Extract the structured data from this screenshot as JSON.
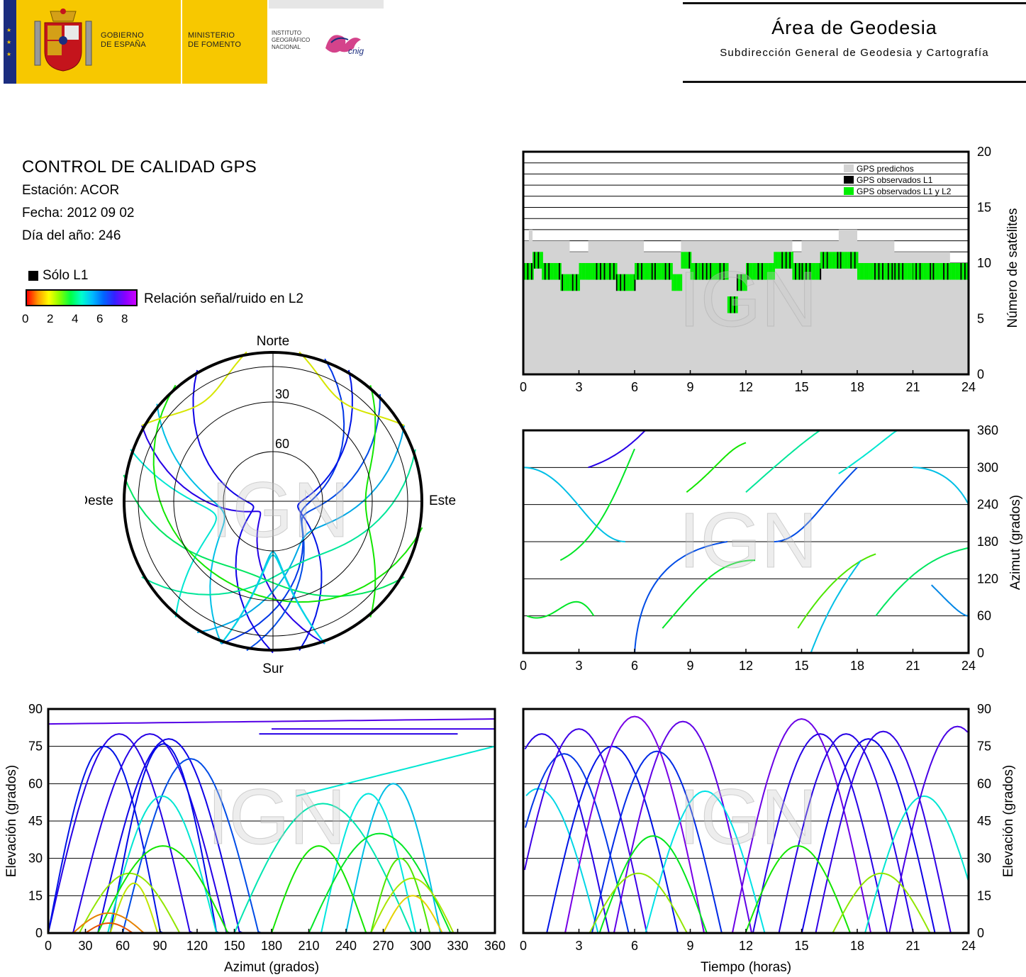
{
  "header": {
    "gobierno": [
      "GOBIERNO",
      "DE ESPAÑA"
    ],
    "ministerio": [
      "MINISTERIO",
      "DE FOMENTO"
    ],
    "instituto": [
      "INSTITUTO",
      "GEOGRÁFICO",
      "NACIONAL"
    ],
    "cnig": "cnig",
    "area_title": "Área de Geodesia",
    "area_subtitle": "Subdirección General de Geodesia y Cartografía",
    "colors": {
      "gold": "#f7c800",
      "flag_blue": "#1b2d7f",
      "flag_red": "#c4141c",
      "cnig": "#cc2277"
    }
  },
  "info": {
    "title": "CONTROL DE CALIDAD GPS",
    "station": "Estación: ACOR",
    "date": "Fecha: 2012 09 02",
    "doy": "Día del año: 246"
  },
  "legend": {
    "solo_l1": "Sólo L1",
    "snr_label": "Relación señal/ruido en L2",
    "snr_ticks": [
      "0",
      "2",
      "4",
      "6",
      "8"
    ]
  },
  "watermark": "IGN",
  "chart_data": [
    {
      "id": "skyplot",
      "type": "scatter",
      "projection": "polar",
      "directions": {
        "north": "Norte",
        "south": "Sur",
        "east": "Este",
        "west": "Oeste"
      },
      "elevation_rings": [
        "30",
        "60"
      ],
      "note": "satellite tracks colored by L2 SNR"
    },
    {
      "id": "satellites",
      "type": "area",
      "xlim": [
        0,
        24
      ],
      "ylim": [
        0,
        20
      ],
      "x_ticks": [
        "0",
        "3",
        "6",
        "9",
        "12",
        "15",
        "18",
        "21",
        "24"
      ],
      "y_ticks": [
        "0",
        "5",
        "10",
        "15",
        "20"
      ],
      "ylabel": "Número de satélites",
      "legend": [
        {
          "label": "GPS predichos",
          "color": "#d3d3d3"
        },
        {
          "label": "GPS observados L1",
          "color": "#000000"
        },
        {
          "label": "GPS observados L1 y L2",
          "color": "#00ee00"
        }
      ],
      "predicted_steps": [
        [
          0,
          12
        ],
        [
          0.3,
          13
        ],
        [
          0.5,
          12
        ],
        [
          2.5,
          11
        ],
        [
          3.5,
          12
        ],
        [
          6.5,
          11
        ],
        [
          8.5,
          12
        ],
        [
          11.5,
          12
        ],
        [
          13.5,
          12
        ],
        [
          14.5,
          11
        ],
        [
          15,
          12
        ],
        [
          17,
          13
        ],
        [
          18,
          12
        ],
        [
          20,
          11
        ],
        [
          21.5,
          11
        ],
        [
          23,
          10
        ],
        [
          24,
          10
        ]
      ],
      "observed_steps": [
        [
          0,
          10
        ],
        [
          0.5,
          11
        ],
        [
          1,
          10
        ],
        [
          2,
          9
        ],
        [
          3,
          10
        ],
        [
          3.5,
          10
        ],
        [
          4.5,
          10
        ],
        [
          5,
          9
        ],
        [
          6,
          10
        ],
        [
          7,
          10
        ],
        [
          8,
          9
        ],
        [
          8.5,
          11
        ],
        [
          9,
          10
        ],
        [
          9.5,
          10
        ],
        [
          10.5,
          10
        ],
        [
          11,
          7
        ],
        [
          11.5,
          9
        ],
        [
          12,
          10
        ],
        [
          13,
          10
        ],
        [
          13.5,
          11
        ],
        [
          14.5,
          10
        ],
        [
          15,
          10
        ],
        [
          16,
          11
        ],
        [
          17,
          11
        ],
        [
          18,
          10
        ],
        [
          18.5,
          10
        ],
        [
          19.5,
          10
        ],
        [
          20,
          10
        ],
        [
          21,
          10
        ],
        [
          22,
          10
        ],
        [
          23,
          10
        ],
        [
          24,
          10
        ]
      ]
    },
    {
      "id": "azimuth_time",
      "type": "scatter",
      "xlim": [
        0,
        24
      ],
      "ylim": [
        0,
        360
      ],
      "x_ticks": [
        "0",
        "3",
        "6",
        "9",
        "12",
        "15",
        "18",
        "21",
        "24"
      ],
      "y_ticks": [
        "0",
        "60",
        "120",
        "180",
        "240",
        "300",
        "360"
      ],
      "ylabel": "Azimut (grados)"
    },
    {
      "id": "elevation_azimuth",
      "type": "scatter",
      "xlim": [
        0,
        360
      ],
      "ylim": [
        0,
        90
      ],
      "x_ticks": [
        "0",
        "30",
        "60",
        "90",
        "120",
        "150",
        "180",
        "210",
        "240",
        "270",
        "300",
        "330",
        "360"
      ],
      "y_ticks": [
        "0",
        "15",
        "30",
        "45",
        "60",
        "75",
        "90"
      ],
      "xlabel": "Azimut (grados)",
      "ylabel": "Elevación (grados)"
    },
    {
      "id": "elevation_time",
      "type": "line",
      "xlim": [
        0,
        24
      ],
      "ylim": [
        0,
        90
      ],
      "x_ticks": [
        "0",
        "3",
        "6",
        "9",
        "12",
        "15",
        "18",
        "21",
        "24"
      ],
      "y_ticks": [
        "0",
        "15",
        "30",
        "45",
        "60",
        "75",
        "90"
      ],
      "xlabel": "Tiempo (horas)",
      "ylabel": "Elevación (grados)",
      "peaks": [
        {
          "t": 1.0,
          "el": 80
        },
        {
          "t": 0.8,
          "el": 58
        },
        {
          "t": 2.2,
          "el": 72
        },
        {
          "t": 4.8,
          "el": 75
        },
        {
          "t": 3.0,
          "el": 82
        },
        {
          "t": 6.0,
          "el": 87
        },
        {
          "t": 7.2,
          "el": 73
        },
        {
          "t": 8.6,
          "el": 85
        },
        {
          "t": 9.8,
          "el": 57
        },
        {
          "t": 15.0,
          "el": 86
        },
        {
          "t": 16.0,
          "el": 80
        },
        {
          "t": 17.4,
          "el": 80
        },
        {
          "t": 18.6,
          "el": 78
        },
        {
          "t": 19.4,
          "el": 81
        },
        {
          "t": 21.6,
          "el": 55
        },
        {
          "t": 23.4,
          "el": 83
        },
        {
          "t": 7.0,
          "el": 39
        },
        {
          "t": 14.8,
          "el": 35
        },
        {
          "t": 6.2,
          "el": 24
        },
        {
          "t": 19.3,
          "el": 24
        }
      ]
    }
  ]
}
